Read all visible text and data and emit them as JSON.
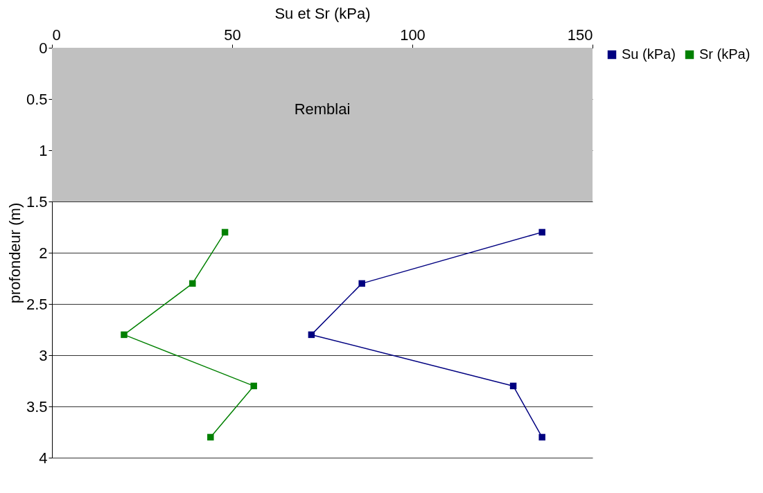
{
  "chart_data": {
    "type": "line",
    "xlabel": "Su et Sr (kPa)",
    "ylabel": "profondeur (m)",
    "xlim": [
      0,
      150
    ],
    "xticks": [
      0,
      50,
      100,
      150
    ],
    "ylim": [
      4,
      0
    ],
    "yticks": [
      0,
      0.5,
      1,
      1.5,
      2,
      2.5,
      3,
      3.5,
      4
    ],
    "series": [
      {
        "name": "Su (kPa)",
        "color": "#000080",
        "x": [
          136,
          86,
          72,
          128,
          136
        ],
        "values": [
          1.8,
          2.3,
          2.8,
          3.3,
          3.8
        ]
      },
      {
        "name": "Sr (kPa)",
        "color": "#008000",
        "x": [
          48,
          39,
          20,
          56,
          44
        ],
        "values": [
          1.8,
          2.3,
          2.8,
          3.3,
          3.8
        ]
      }
    ],
    "bands": [
      {
        "axis": "y",
        "from": 0,
        "to": 1.5,
        "label": "Remblai",
        "color": "#c0c0c0"
      }
    ],
    "grid": "y",
    "legend": "right",
    "marker": "square",
    "line_style": "solid"
  }
}
